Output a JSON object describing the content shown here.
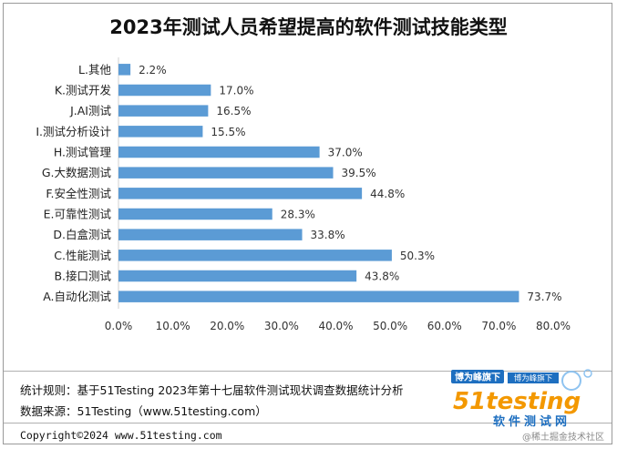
{
  "title": "2023年测试人员希望提高的软件测试技能类型",
  "chart_data": {
    "type": "bar",
    "orientation": "horizontal",
    "categories": [
      "A.自动化测试",
      "B.接口测试",
      "C.性能测试",
      "D.白盒测试",
      "E.可靠性测试",
      "F.安全性测试",
      "G.大数据测试",
      "H.测试管理",
      "I.测试分析设计",
      "J.AI测试",
      "K.测试开发",
      "L.其他"
    ],
    "values": [
      73.7,
      43.8,
      50.3,
      33.8,
      28.3,
      44.8,
      39.5,
      37.0,
      15.5,
      16.5,
      17.0,
      2.2
    ],
    "value_labels": [
      "73.7%",
      "43.8%",
      "50.3%",
      "33.8%",
      "28.3%",
      "44.8%",
      "39.5%",
      "37.0%",
      "15.5%",
      "16.5%",
      "17.0%",
      "2.2%"
    ],
    "xlim": [
      0,
      80
    ],
    "xticks": [
      0,
      10,
      20,
      30,
      40,
      50,
      60,
      70,
      80
    ],
    "xtick_labels": [
      "0.0%",
      "10.0%",
      "20.0%",
      "30.0%",
      "40.0%",
      "50.0%",
      "60.0%",
      "70.0%",
      "80.0%"
    ],
    "bar_color": "#5b9bd5",
    "grid": false,
    "legend": "none"
  },
  "notes": {
    "rule": "统计规则：基于51Testing 2023年第十七届软件测试现状调查数据统计分析",
    "source": "数据来源：51Testing（www.51testing.com）",
    "copyright": "Copyright©2024 www.51testing.com"
  },
  "logo": {
    "badge1": "博为峰旗下",
    "badge2": "博为峰旗下",
    "brand": "51testing",
    "subtitle": "软件测试网",
    "watermark": "@稀土掘金技术社区"
  },
  "colors": {
    "bar": "#5b9bd5",
    "brand_blue": "#1e6fc0",
    "brand_orange": "#f39800"
  }
}
